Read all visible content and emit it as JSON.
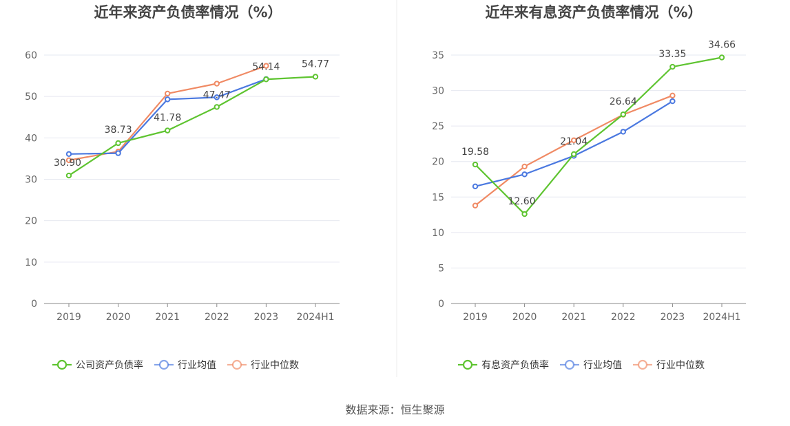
{
  "source_label": "数据来源：恒生聚源",
  "colors": {
    "company": "#5ec430",
    "avg": "#4a78e0",
    "median": "#f08a64"
  },
  "chart_data": [
    {
      "type": "line",
      "title": "近年来资产负债率情况（%）",
      "categories": [
        "2019",
        "2020",
        "2021",
        "2022",
        "2023",
        "2024H1"
      ],
      "ylim": [
        0,
        60
      ],
      "yticks": [
        0,
        10,
        20,
        30,
        40,
        50,
        60
      ],
      "grid": true,
      "legend_position": "bottom",
      "series": [
        {
          "name": "公司资产负债率",
          "key": "company",
          "values": [
            30.9,
            38.73,
            41.78,
            47.47,
            54.14,
            54.77
          ],
          "labels": [
            "30.90",
            "38.73",
            "41.78",
            "47.47",
            "54.14",
            "54.77"
          ]
        },
        {
          "name": "行业均值",
          "key": "avg",
          "values": [
            36.1,
            36.3,
            49.3,
            49.8,
            54.2,
            null
          ]
        },
        {
          "name": "行业中位数",
          "key": "median",
          "values": [
            34.6,
            36.7,
            50.7,
            53.1,
            57.4,
            null
          ]
        }
      ]
    },
    {
      "type": "line",
      "title": "近年来有息资产负债率情况（%）",
      "categories": [
        "2019",
        "2020",
        "2021",
        "2022",
        "2023",
        "2024H1"
      ],
      "ylim": [
        0,
        35
      ],
      "yticks": [
        0,
        5,
        10,
        15,
        20,
        25,
        30,
        35
      ],
      "grid": true,
      "legend_position": "bottom",
      "series": [
        {
          "name": "有息资产负债率",
          "key": "company",
          "values": [
            19.58,
            12.6,
            21.04,
            26.64,
            33.35,
            34.66
          ],
          "labels": [
            "19.58",
            "12.60",
            "21.04",
            "26.64",
            "33.35",
            "34.66"
          ]
        },
        {
          "name": "行业均值",
          "key": "avg",
          "values": [
            16.5,
            18.2,
            20.8,
            24.2,
            28.5,
            null
          ]
        },
        {
          "name": "行业中位数",
          "key": "median",
          "values": [
            13.8,
            19.3,
            23.0,
            26.6,
            29.3,
            null
          ]
        }
      ]
    }
  ]
}
